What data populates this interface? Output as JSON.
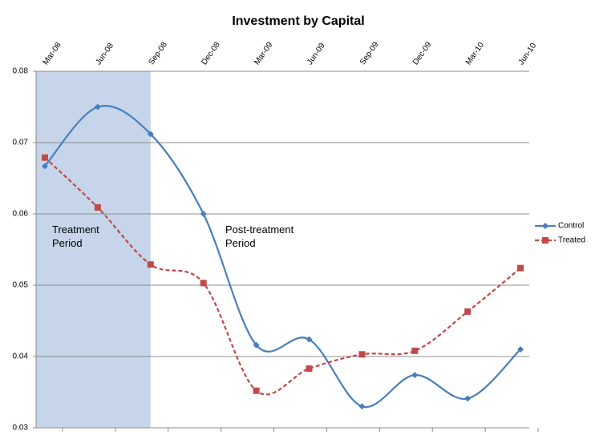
{
  "chart_data": {
    "type": "line",
    "title": "Investment by Capital",
    "categories": [
      "Mar-08",
      "Jun-08",
      "Sep-08",
      "Dec-08",
      "Mar-09",
      "Jun-09",
      "Sep-09",
      "Dec-09",
      "Mar-10",
      "Jun-10"
    ],
    "series": [
      {
        "name": "Control",
        "color": "#4a7ebb",
        "marker": "diamond",
        "line": "solid",
        "values": [
          0.0667,
          0.075,
          0.0712,
          0.06,
          0.0416,
          0.0424,
          0.033,
          0.0374,
          0.0341,
          0.041
        ]
      },
      {
        "name": "Treated",
        "color": "#be4b48",
        "marker": "square",
        "line": "dashed",
        "values": [
          0.0679,
          0.0609,
          0.0529,
          0.0503,
          0.0352,
          0.0383,
          0.0403,
          0.0408,
          0.0463,
          0.0524
        ]
      }
    ],
    "ylim": [
      0.03,
      0.08
    ],
    "yticks": [
      0.03,
      0.04,
      0.05,
      0.06,
      0.07,
      0.08
    ],
    "grid": true,
    "smooth": true,
    "legend": "right",
    "annotations": [
      {
        "lines": [
          "Treatment",
          "Period"
        ]
      },
      {
        "lines": [
          "Post-treatment",
          "Period"
        ]
      }
    ]
  }
}
